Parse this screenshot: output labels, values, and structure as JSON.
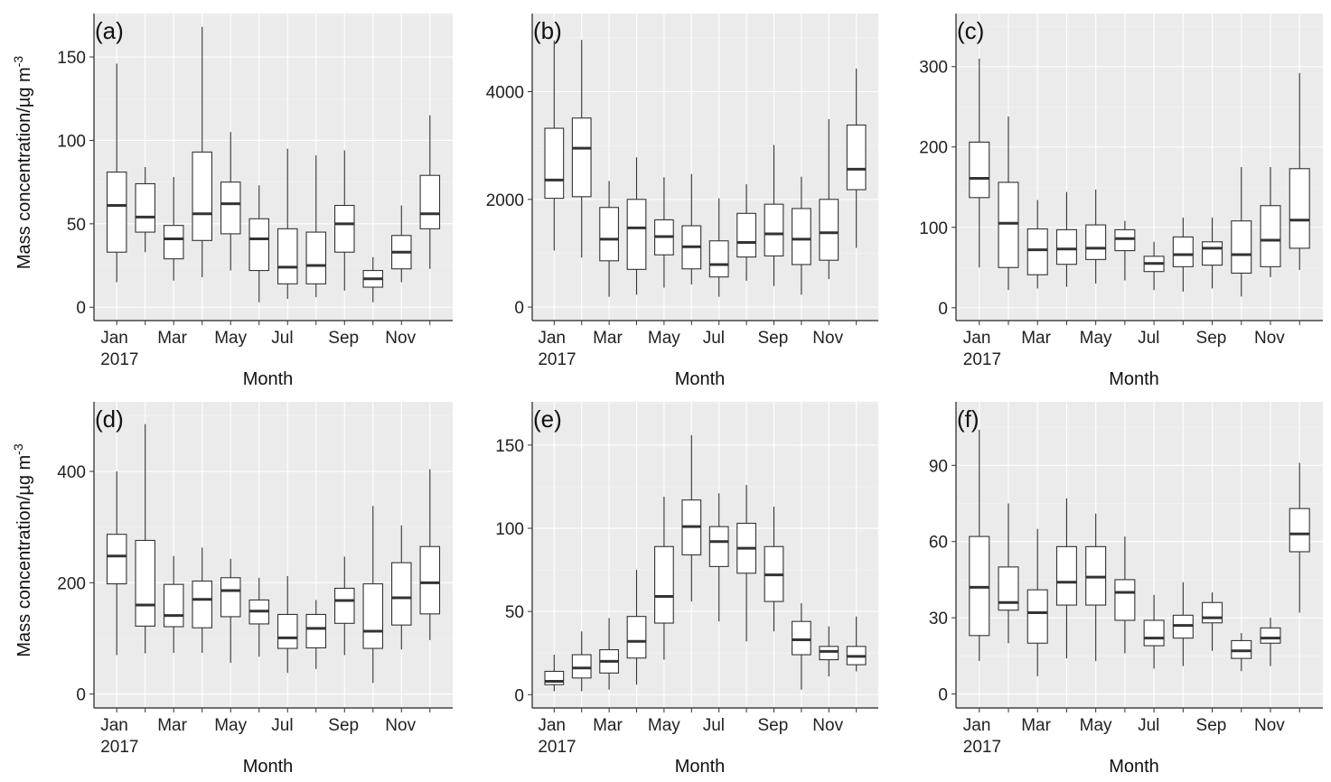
{
  "y_axis_title_prefix": "Mass concentration/µg m",
  "y_axis_title_exponent": "-3",
  "x_axis_title": "Month",
  "chart_data": [
    {
      "type": "boxplot",
      "panel_label": "(a)",
      "months": [
        "Jan",
        "Feb",
        "Mar",
        "Apr",
        "May",
        "Jun",
        "Jul",
        "Aug",
        "Sep",
        "Oct",
        "Nov",
        "Dec"
      ],
      "x_tick_labels": [
        "Jan\n2017",
        "Mar",
        "May",
        "Jul",
        "Sep",
        "Nov"
      ],
      "xlabel": "Month",
      "ylabel": "Mass concentration/µg m-3",
      "ylim": [
        -8,
        176
      ],
      "y_ticks": [
        0,
        50,
        100,
        150
      ],
      "boxes": [
        {
          "min": 15,
          "q1": 33,
          "median": 61,
          "q3": 81,
          "max": 146
        },
        {
          "min": 33,
          "q1": 45,
          "median": 54,
          "q3": 74,
          "max": 84
        },
        {
          "min": 16,
          "q1": 29,
          "median": 41,
          "q3": 49,
          "max": 78
        },
        {
          "min": 18,
          "q1": 40,
          "median": 56,
          "q3": 93,
          "max": 168
        },
        {
          "min": 22,
          "q1": 44,
          "median": 62,
          "q3": 75,
          "max": 105
        },
        {
          "min": 3,
          "q1": 22,
          "median": 41,
          "q3": 53,
          "max": 73
        },
        {
          "min": 5,
          "q1": 14,
          "median": 24,
          "q3": 47,
          "max": 95
        },
        {
          "min": 6,
          "q1": 14,
          "median": 25,
          "q3": 45,
          "max": 91
        },
        {
          "min": 10,
          "q1": 33,
          "median": 50,
          "q3": 61,
          "max": 94
        },
        {
          "min": 3,
          "q1": 12,
          "median": 17,
          "q3": 22,
          "max": 30
        },
        {
          "min": 15,
          "q1": 23,
          "median": 33,
          "q3": 43,
          "max": 61
        },
        {
          "min": 23,
          "q1": 47,
          "median": 56,
          "q3": 79,
          "max": 115
        }
      ]
    },
    {
      "type": "boxplot",
      "panel_label": "(b)",
      "months": [
        "Jan",
        "Feb",
        "Mar",
        "Apr",
        "May",
        "Jun",
        "Jul",
        "Aug",
        "Sep",
        "Oct",
        "Nov",
        "Dec"
      ],
      "x_tick_labels": [
        "Jan\n2017",
        "Mar",
        "May",
        "Jul",
        "Sep",
        "Nov"
      ],
      "xlabel": "Month",
      "ylabel": "",
      "ylim": [
        -250,
        5450
      ],
      "y_ticks": [
        0,
        2000,
        4000
      ],
      "boxes": [
        {
          "min": 1050,
          "q1": 2020,
          "median": 2360,
          "q3": 3320,
          "max": 4950
        },
        {
          "min": 920,
          "q1": 2050,
          "median": 2950,
          "q3": 3510,
          "max": 4960
        },
        {
          "min": 190,
          "q1": 860,
          "median": 1260,
          "q3": 1850,
          "max": 2340
        },
        {
          "min": 230,
          "q1": 700,
          "median": 1470,
          "q3": 2000,
          "max": 2780
        },
        {
          "min": 360,
          "q1": 970,
          "median": 1310,
          "q3": 1620,
          "max": 2410
        },
        {
          "min": 420,
          "q1": 710,
          "median": 1120,
          "q3": 1510,
          "max": 2470
        },
        {
          "min": 190,
          "q1": 560,
          "median": 790,
          "q3": 1230,
          "max": 2020
        },
        {
          "min": 490,
          "q1": 930,
          "median": 1200,
          "q3": 1740,
          "max": 2280
        },
        {
          "min": 390,
          "q1": 950,
          "median": 1360,
          "q3": 1910,
          "max": 3010
        },
        {
          "min": 230,
          "q1": 790,
          "median": 1260,
          "q3": 1830,
          "max": 2420
        },
        {
          "min": 520,
          "q1": 870,
          "median": 1380,
          "q3": 2000,
          "max": 3490
        },
        {
          "min": 1100,
          "q1": 2180,
          "median": 2560,
          "q3": 3380,
          "max": 4430
        }
      ]
    },
    {
      "type": "boxplot",
      "panel_label": "(c)",
      "months": [
        "Jan",
        "Feb",
        "Mar",
        "Apr",
        "May",
        "Jun",
        "Jul",
        "Aug",
        "Sep",
        "Oct",
        "Nov",
        "Dec"
      ],
      "x_tick_labels": [
        "Jan\n2017",
        "Mar",
        "May",
        "Jul",
        "Sep",
        "Nov"
      ],
      "xlabel": "Month",
      "ylabel": "",
      "ylim": [
        -16,
        366
      ],
      "y_ticks": [
        0,
        100,
        200,
        300
      ],
      "boxes": [
        {
          "min": 50,
          "q1": 137,
          "median": 161,
          "q3": 206,
          "max": 310
        },
        {
          "min": 22,
          "q1": 50,
          "median": 105,
          "q3": 156,
          "max": 238
        },
        {
          "min": 24,
          "q1": 41,
          "median": 72,
          "q3": 98,
          "max": 134
        },
        {
          "min": 26,
          "q1": 54,
          "median": 73,
          "q3": 97,
          "max": 144
        },
        {
          "min": 30,
          "q1": 60,
          "median": 74,
          "q3": 103,
          "max": 147
        },
        {
          "min": 34,
          "q1": 71,
          "median": 86,
          "q3": 97,
          "max": 108
        },
        {
          "min": 22,
          "q1": 45,
          "median": 55,
          "q3": 64,
          "max": 82
        },
        {
          "min": 20,
          "q1": 51,
          "median": 66,
          "q3": 88,
          "max": 112
        },
        {
          "min": 24,
          "q1": 53,
          "median": 74,
          "q3": 82,
          "max": 112
        },
        {
          "min": 14,
          "q1": 43,
          "median": 66,
          "q3": 108,
          "max": 175
        },
        {
          "min": 38,
          "q1": 51,
          "median": 84,
          "q3": 127,
          "max": 175
        },
        {
          "min": 47,
          "q1": 74,
          "median": 109,
          "q3": 173,
          "max": 292
        }
      ]
    },
    {
      "type": "boxplot",
      "panel_label": "(d)",
      "months": [
        "Jan",
        "Feb",
        "Mar",
        "Apr",
        "May",
        "Jun",
        "Jul",
        "Aug",
        "Sep",
        "Oct",
        "Nov",
        "Dec"
      ],
      "x_tick_labels": [
        "Jan\n2017",
        "Mar",
        "May",
        "Jul",
        "Sep",
        "Nov"
      ],
      "xlabel": "Month",
      "ylabel": "Mass concentration/µg m-3",
      "ylim": [
        -25,
        525
      ],
      "y_ticks": [
        0,
        200,
        400
      ],
      "boxes": [
        {
          "min": 70,
          "q1": 198,
          "median": 248,
          "q3": 287,
          "max": 400
        },
        {
          "min": 73,
          "q1": 122,
          "median": 160,
          "q3": 276,
          "max": 485
        },
        {
          "min": 74,
          "q1": 121,
          "median": 141,
          "q3": 197,
          "max": 248
        },
        {
          "min": 74,
          "q1": 119,
          "median": 170,
          "q3": 203,
          "max": 263
        },
        {
          "min": 56,
          "q1": 139,
          "median": 186,
          "q3": 209,
          "max": 243
        },
        {
          "min": 67,
          "q1": 126,
          "median": 149,
          "q3": 169,
          "max": 209
        },
        {
          "min": 38,
          "q1": 82,
          "median": 101,
          "q3": 143,
          "max": 212
        },
        {
          "min": 45,
          "q1": 83,
          "median": 118,
          "q3": 143,
          "max": 169
        },
        {
          "min": 70,
          "q1": 127,
          "median": 168,
          "q3": 190,
          "max": 247
        },
        {
          "min": 20,
          "q1": 82,
          "median": 113,
          "q3": 198,
          "max": 338
        },
        {
          "min": 80,
          "q1": 124,
          "median": 173,
          "q3": 236,
          "max": 303
        },
        {
          "min": 97,
          "q1": 144,
          "median": 200,
          "q3": 265,
          "max": 404
        }
      ]
    },
    {
      "type": "boxplot",
      "panel_label": "(e)",
      "months": [
        "Jan",
        "Feb",
        "Mar",
        "Apr",
        "May",
        "Jun",
        "Jul",
        "Aug",
        "Sep",
        "Oct",
        "Nov",
        "Dec"
      ],
      "x_tick_labels": [
        "Jan\n2017",
        "Mar",
        "May",
        "Jul",
        "Sep",
        "Nov"
      ],
      "xlabel": "Month",
      "ylabel": "",
      "ylim": [
        -8,
        176
      ],
      "y_ticks": [
        0,
        50,
        100,
        150
      ],
      "boxes": [
        {
          "min": 2,
          "q1": 6,
          "median": 8,
          "q3": 14,
          "max": 24
        },
        {
          "min": 2,
          "q1": 10,
          "median": 16,
          "q3": 24,
          "max": 38
        },
        {
          "min": 3,
          "q1": 13,
          "median": 20,
          "q3": 27,
          "max": 46
        },
        {
          "min": 6,
          "q1": 22,
          "median": 32,
          "q3": 47,
          "max": 75
        },
        {
          "min": 21,
          "q1": 43,
          "median": 59,
          "q3": 89,
          "max": 119
        },
        {
          "min": 56,
          "q1": 84,
          "median": 101,
          "q3": 117,
          "max": 156
        },
        {
          "min": 44,
          "q1": 77,
          "median": 92,
          "q3": 101,
          "max": 121
        },
        {
          "min": 32,
          "q1": 73,
          "median": 88,
          "q3": 103,
          "max": 126
        },
        {
          "min": 38,
          "q1": 56,
          "median": 72,
          "q3": 89,
          "max": 113
        },
        {
          "min": 3,
          "q1": 24,
          "median": 33,
          "q3": 44,
          "max": 55
        },
        {
          "min": 11,
          "q1": 21,
          "median": 26,
          "q3": 29,
          "max": 41
        },
        {
          "min": 14,
          "q1": 18,
          "median": 23,
          "q3": 29,
          "max": 47
        }
      ]
    },
    {
      "type": "boxplot",
      "panel_label": "(f)",
      "months": [
        "Jan",
        "Feb",
        "Mar",
        "Apr",
        "May",
        "Jun",
        "Jul",
        "Aug",
        "Sep",
        "Oct",
        "Nov",
        "Dec"
      ],
      "x_tick_labels": [
        "Jan\n2017",
        "Mar",
        "May",
        "Jul",
        "Sep",
        "Nov"
      ],
      "xlabel": "Month",
      "ylabel": "",
      "ylim": [
        -5.5,
        115
      ],
      "y_ticks": [
        0,
        30,
        60,
        90
      ],
      "boxes": [
        {
          "min": 13,
          "q1": 23,
          "median": 42,
          "q3": 62,
          "max": 104
        },
        {
          "min": 20,
          "q1": 33,
          "median": 36,
          "q3": 50,
          "max": 75
        },
        {
          "min": 7,
          "q1": 20,
          "median": 32,
          "q3": 41,
          "max": 65
        },
        {
          "min": 14,
          "q1": 35,
          "median": 44,
          "q3": 58,
          "max": 77
        },
        {
          "min": 13,
          "q1": 35,
          "median": 46,
          "q3": 58,
          "max": 71
        },
        {
          "min": 16,
          "q1": 29,
          "median": 40,
          "q3": 45,
          "max": 62
        },
        {
          "min": 10,
          "q1": 19,
          "median": 22,
          "q3": 29,
          "max": 39
        },
        {
          "min": 11,
          "q1": 22,
          "median": 27,
          "q3": 31,
          "max": 44
        },
        {
          "min": 17,
          "q1": 28,
          "median": 30,
          "q3": 36,
          "max": 40
        },
        {
          "min": 9,
          "q1": 14,
          "median": 17,
          "q3": 21,
          "max": 24
        },
        {
          "min": 11,
          "q1": 20,
          "median": 22,
          "q3": 26,
          "max": 30
        },
        {
          "min": 32,
          "q1": 56,
          "median": 63,
          "q3": 73,
          "max": 91
        }
      ]
    }
  ]
}
